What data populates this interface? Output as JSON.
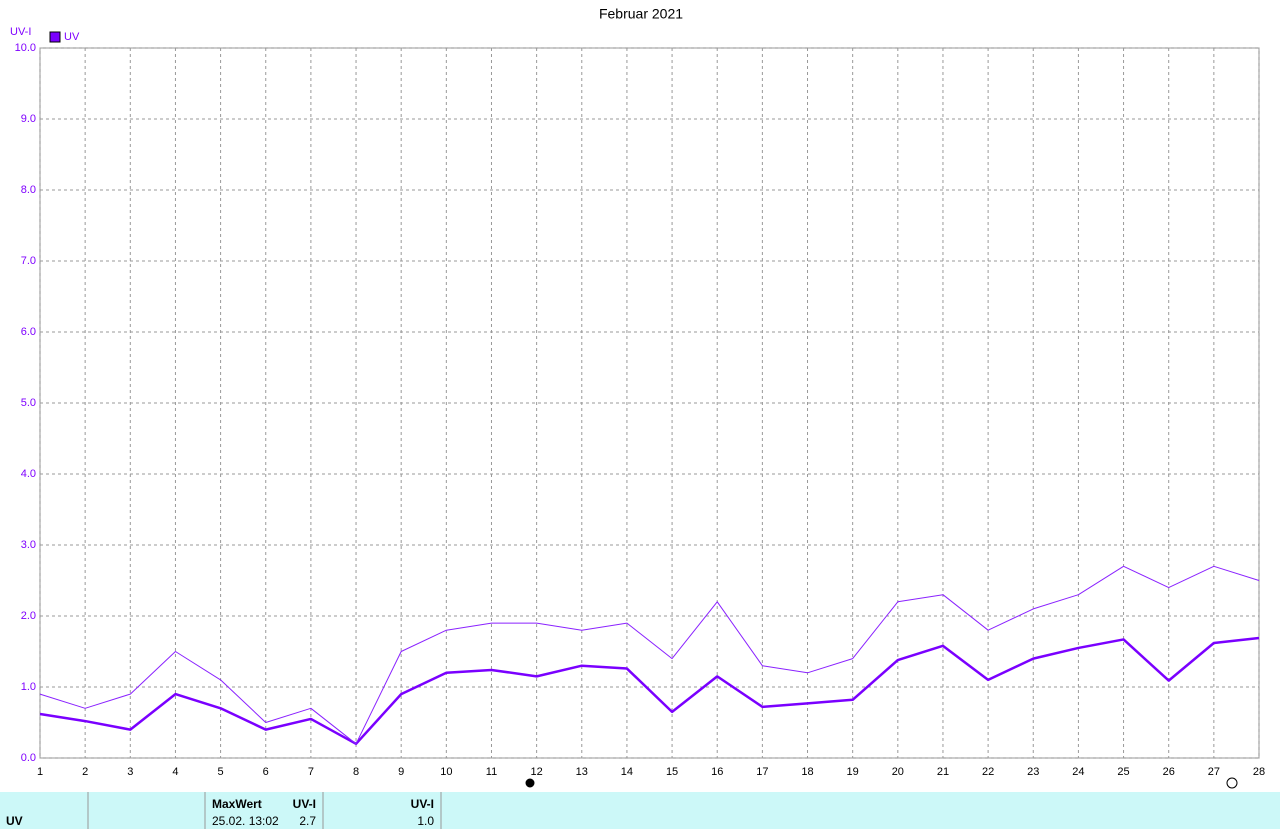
{
  "chart_data": {
    "type": "line",
    "title": "Februar 2021",
    "y_label": "UV-I",
    "x": [
      1,
      2,
      3,
      4,
      5,
      6,
      7,
      8,
      9,
      10,
      11,
      12,
      13,
      14,
      15,
      16,
      17,
      18,
      19,
      20,
      21,
      22,
      23,
      24,
      25,
      26,
      27,
      28
    ],
    "xlim": [
      1,
      28
    ],
    "xticks": [
      1,
      2,
      3,
      4,
      5,
      6,
      7,
      8,
      9,
      10,
      11,
      12,
      13,
      14,
      15,
      16,
      17,
      18,
      19,
      20,
      21,
      22,
      23,
      24,
      25,
      26,
      27,
      28
    ],
    "ylim": [
      0,
      10
    ],
    "yticks": [
      {
        "value": 0,
        "label": "0.0"
      },
      {
        "value": 1,
        "label": "1.0"
      },
      {
        "value": 2,
        "label": "2.0"
      },
      {
        "value": 3,
        "label": "3.0"
      },
      {
        "value": 4,
        "label": "4.0"
      },
      {
        "value": 5,
        "label": "5.0"
      },
      {
        "value": 6,
        "label": "6.0"
      },
      {
        "value": 7,
        "label": "7.0"
      },
      {
        "value": 8,
        "label": "8.0"
      },
      {
        "value": 9,
        "label": "9.0"
      },
      {
        "value": 10,
        "label": "10.0"
      }
    ],
    "grid": true,
    "legend": "top-left",
    "series": [
      {
        "name": "UV",
        "color": "#7a00ff",
        "line_width": 2.5,
        "values": [
          0.62,
          0.52,
          0.4,
          0.9,
          0.7,
          0.4,
          0.55,
          0.2,
          0.9,
          1.2,
          1.24,
          1.15,
          1.3,
          1.26,
          0.65,
          1.15,
          0.72,
          0.77,
          0.82,
          1.38,
          1.58,
          1.1,
          1.4,
          1.55,
          1.67,
          1.09,
          1.62,
          1.69
        ]
      },
      {
        "color": "#8a22ff",
        "line_width": 1,
        "values": [
          0.9,
          0.7,
          0.9,
          1.5,
          1.1,
          0.5,
          0.7,
          0.2,
          1.5,
          1.8,
          1.9,
          1.9,
          1.8,
          1.9,
          1.4,
          2.2,
          1.3,
          1.2,
          1.4,
          2.2,
          2.3,
          1.8,
          2.1,
          2.3,
          2.7,
          2.4,
          2.7,
          2.5
        ]
      }
    ]
  },
  "footer": {
    "row_label": "UV",
    "max_header": "MaxWert",
    "max_unit": "UV-I",
    "max_time": "25.02.  13:02",
    "max_value": "2.7",
    "avg_unit": "UV-I",
    "avg_value": "1.0"
  }
}
